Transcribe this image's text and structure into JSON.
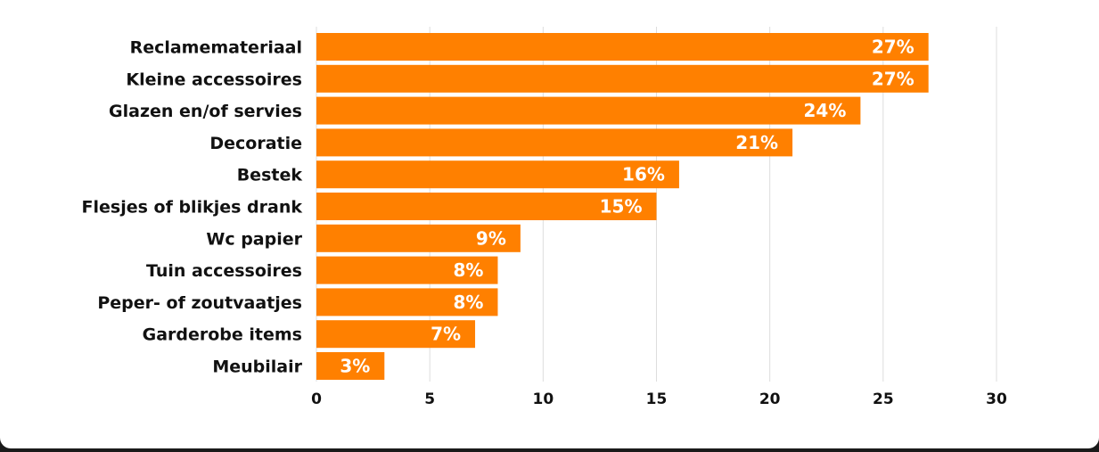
{
  "chart_data": {
    "type": "bar",
    "orientation": "horizontal",
    "categories": [
      "Reclamemateriaal",
      "Kleine accessoires",
      "Glazen en/of servies",
      "Decoratie",
      "Bestek",
      "Flesjes of blikjes drank",
      "Wc papier",
      "Tuin accessoires",
      "Peper- of zoutvaatjes",
      "Garderobe items",
      "Meubilair"
    ],
    "values": [
      27,
      27,
      24,
      21,
      16,
      15,
      9,
      8,
      8,
      7,
      3
    ],
    "value_labels": [
      "27%",
      "27%",
      "24%",
      "21%",
      "16%",
      "15%",
      "9%",
      "8%",
      "8%",
      "7%",
      "3%"
    ],
    "xlim": [
      0,
      30
    ],
    "xticks": [
      0,
      5,
      10,
      15,
      20,
      25,
      30
    ],
    "grid": "vertical",
    "bar_color": "#ff8000",
    "grid_color": "#dddddd",
    "title": "",
    "xlabel": "",
    "ylabel": ""
  }
}
